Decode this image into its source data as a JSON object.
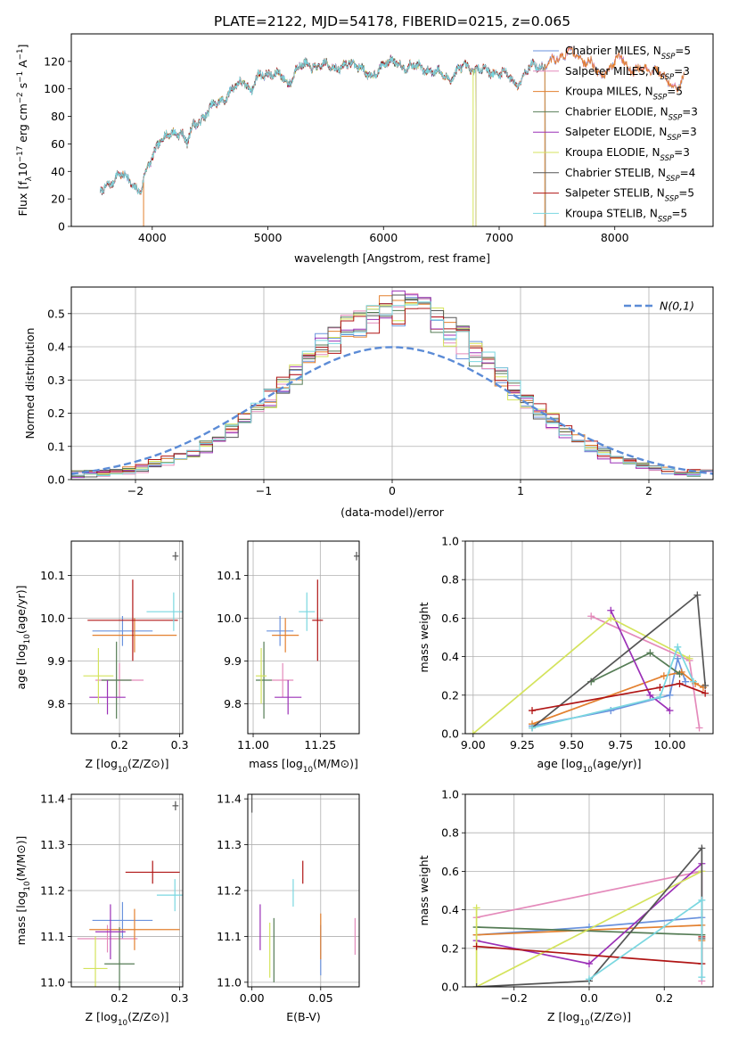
{
  "figure_title": "PLATE=2122, MJD=54178, FIBERID=0215, z=0.065",
  "models": [
    {
      "name": "Chabrier MILES",
      "nssp": "5",
      "color": "#6a92dd"
    },
    {
      "name": "Salpeter MILES",
      "nssp": "3",
      "color": "#e48abb"
    },
    {
      "name": "Kroupa MILES",
      "nssp": "5",
      "color": "#e3802f"
    },
    {
      "name": "Chabrier ELODIE",
      "nssp": "3",
      "color": "#557c55"
    },
    {
      "name": "Salpeter ELODIE",
      "nssp": "3",
      "color": "#9b30b7"
    },
    {
      "name": "Kroupa ELODIE",
      "nssp": "3",
      "color": "#d4e35c"
    },
    {
      "name": "Chabrier STELIB",
      "nssp": "4",
      "color": "#555555"
    },
    {
      "name": "Salpeter STELIB",
      "nssp": "5",
      "color": "#b01515"
    },
    {
      "name": "Kroupa STELIB",
      "nssp": "5",
      "color": "#7ad7e0"
    }
  ],
  "chart_data": [
    {
      "id": "spectrum",
      "type": "line",
      "xlabel": "wavelength [Angstrom, rest frame]",
      "ylabel": "Flux [f_λ 10^-17 erg cm^-2 s^-1 A^-1]",
      "xlim": [
        3300,
        8850
      ],
      "ylim": [
        0,
        140
      ],
      "xticks": [
        4000,
        5000,
        6000,
        7000,
        8000
      ],
      "yticks": [
        0,
        20,
        40,
        60,
        80,
        100,
        120
      ],
      "legend": "top-right",
      "continuum": [
        [
          3550,
          24
        ],
        [
          3700,
          38
        ],
        [
          3800,
          34
        ],
        [
          3900,
          25
        ],
        [
          3950,
          40
        ],
        [
          4000,
          50
        ],
        [
          4050,
          62
        ],
        [
          4150,
          66
        ],
        [
          4250,
          70
        ],
        [
          4300,
          60
        ],
        [
          4350,
          72
        ],
        [
          4500,
          85
        ],
        [
          4600,
          92
        ],
        [
          4700,
          100
        ],
        [
          4800,
          106
        ],
        [
          4861,
          99
        ],
        [
          4900,
          107
        ],
        [
          5000,
          112
        ],
        [
          5100,
          110
        ],
        [
          5175,
          103
        ],
        [
          5250,
          116
        ],
        [
          5400,
          117
        ],
        [
          5600,
          116
        ],
        [
          5800,
          118
        ],
        [
          5893,
          106
        ],
        [
          6000,
          120
        ],
        [
          6200,
          117
        ],
        [
          6400,
          114
        ],
        [
          6563,
          108
        ],
        [
          6700,
          116
        ],
        [
          6900,
          113
        ],
        [
          7050,
          111
        ],
        [
          7150,
          104
        ],
        [
          7300,
          118
        ],
        [
          7400,
          116
        ],
        [
          7600,
          128
        ],
        [
          7700,
          122
        ],
        [
          7800,
          120
        ],
        [
          7850,
          109
        ],
        [
          7900,
          112
        ],
        [
          8050,
          123
        ],
        [
          8150,
          114
        ],
        [
          8250,
          113
        ],
        [
          8350,
          115
        ],
        [
          8450,
          105
        ],
        [
          8550,
          102
        ],
        [
          8600,
          108
        ]
      ],
      "model_ranges": [
        [
          3550,
          8600
        ],
        [
          3550,
          8600
        ],
        [
          3550,
          8600
        ],
        [
          3900,
          6800
        ],
        [
          3900,
          6800
        ],
        [
          3900,
          6800
        ],
        [
          3550,
          7400
        ],
        [
          3550,
          7400
        ],
        [
          3550,
          7400
        ]
      ]
    },
    {
      "id": "residuals",
      "type": "histogram",
      "xlabel": "(data-model)/error",
      "ylabel": "Normed distribution",
      "xlim": [
        -2.5,
        2.5
      ],
      "ylim": [
        0,
        0.58
      ],
      "xticks": [
        -2,
        -1,
        0,
        1,
        2
      ],
      "yticks": [
        0.0,
        0.1,
        0.2,
        0.3,
        0.4,
        0.5
      ],
      "legend": "top-right",
      "reference_label": "N(0,1)",
      "reference_color": "#5b8bd6",
      "bin_width": 0.1
    },
    {
      "id": "age_vs_Z",
      "type": "errorbar",
      "xlabel": "Z [log10(Z/Z⊙)]",
      "ylabel": "age  [log10(age/yr)]",
      "xlim": [
        0.12,
        0.305
      ],
      "ylim": [
        9.73,
        10.18
      ],
      "xticks": [
        0.2,
        0.3
      ],
      "yticks": [
        9.8,
        9.9,
        10.0,
        10.1
      ],
      "points": [
        {
          "x": 0.205,
          "xerr": 0.05,
          "y": 9.97,
          "yerr": 0.035
        },
        {
          "x": 0.2,
          "xerr": 0.04,
          "y": 9.855,
          "yerr": 0.04
        },
        {
          "x": 0.225,
          "xerr": 0.07,
          "y": 9.96,
          "yerr": 0.04
        },
        {
          "x": 0.195,
          "xerr": 0.025,
          "y": 9.855,
          "yerr": 0.09
        },
        {
          "x": 0.18,
          "xerr": 0.03,
          "y": 9.815,
          "yerr": 0.04
        },
        {
          "x": 0.165,
          "xerr": 0.025,
          "y": 9.865,
          "yerr": 0.065
        },
        {
          "x": 0.293,
          "xerr": 0.005,
          "y": 10.145,
          "yerr": 0.01
        },
        {
          "x": 0.222,
          "xerr": 0.075,
          "y": 9.995,
          "yerr": 0.095
        },
        {
          "x": 0.29,
          "xerr": 0.045,
          "y": 10.015,
          "yerr": 0.045
        }
      ]
    },
    {
      "id": "age_vs_mass",
      "type": "errorbar",
      "xlabel": "mass [log10(M/M⊙)]",
      "ylabel": "",
      "xlim": [
        10.98,
        11.395
      ],
      "ylim": [
        9.73,
        10.18
      ],
      "xticks": [
        11.0,
        11.25
      ],
      "yticks": [
        9.8,
        9.9,
        10.0,
        10.1
      ],
      "points": [
        {
          "x": 11.1,
          "xerr": 0.05,
          "y": 9.97,
          "yerr": 0.035
        },
        {
          "x": 11.11,
          "xerr": 0.04,
          "y": 9.855,
          "yerr": 0.04
        },
        {
          "x": 11.12,
          "xerr": 0.05,
          "y": 9.96,
          "yerr": 0.04
        },
        {
          "x": 11.04,
          "xerr": 0.03,
          "y": 9.855,
          "yerr": 0.09
        },
        {
          "x": 11.13,
          "xerr": 0.05,
          "y": 9.815,
          "yerr": 0.04
        },
        {
          "x": 11.03,
          "xerr": 0.02,
          "y": 9.865,
          "yerr": 0.065
        },
        {
          "x": 11.385,
          "xerr": 0.01,
          "y": 10.145,
          "yerr": 0.01
        },
        {
          "x": 11.24,
          "xerr": 0.02,
          "y": 9.995,
          "yerr": 0.095
        },
        {
          "x": 11.2,
          "xerr": 0.03,
          "y": 10.015,
          "yerr": 0.045
        }
      ]
    },
    {
      "id": "mass_weight_vs_age",
      "type": "line",
      "xlabel": "age  [log10(age/yr)]",
      "ylabel": "mass weight",
      "xlim": [
        8.96,
        10.22
      ],
      "ylim": [
        0,
        1
      ],
      "xticks": [
        9.0,
        9.25,
        9.5,
        9.75,
        10.0
      ],
      "yticks": [
        0.0,
        0.2,
        0.4,
        0.6,
        0.8,
        1.0
      ],
      "series": [
        [
          [
            9.3,
            0.04
          ],
          [
            9.7,
            0.12
          ],
          [
            10.0,
            0.2
          ],
          [
            10.04,
            0.39
          ],
          [
            10.08,
            0.27
          ]
        ],
        [
          [
            9.6,
            0.61
          ],
          [
            10.1,
            0.38
          ],
          [
            10.15,
            0.03
          ]
        ],
        [
          [
            9.3,
            0.05
          ],
          [
            9.97,
            0.3
          ],
          [
            10.06,
            0.32
          ],
          [
            10.13,
            0.26
          ],
          [
            10.17,
            0.24
          ]
        ],
        [
          [
            9.6,
            0.27
          ],
          [
            9.9,
            0.42
          ],
          [
            10.05,
            0.31
          ]
        ],
        [
          [
            9.7,
            0.64
          ],
          [
            9.9,
            0.2
          ],
          [
            10.0,
            0.12
          ]
        ],
        [
          [
            9.0,
            0.0
          ],
          [
            9.7,
            0.6
          ],
          [
            10.1,
            0.39
          ]
        ],
        [
          [
            9.3,
            0.03
          ],
          [
            10.14,
            0.72
          ],
          [
            10.18,
            0.25
          ]
        ],
        [
          [
            9.3,
            0.12
          ],
          [
            9.95,
            0.24
          ],
          [
            10.05,
            0.26
          ],
          [
            10.18,
            0.21
          ]
        ],
        [
          [
            9.3,
            0.03
          ],
          [
            9.95,
            0.19
          ],
          [
            10.04,
            0.45
          ],
          [
            10.12,
            0.27
          ]
        ]
      ]
    },
    {
      "id": "mass_vs_Z",
      "type": "errorbar",
      "xlabel": "Z [log10(Z/Z⊙)]",
      "ylabel": "mass [log10(M/M⊙)]",
      "xlim": [
        0.12,
        0.305
      ],
      "ylim": [
        10.99,
        11.41
      ],
      "xticks": [
        0.2,
        0.3
      ],
      "yticks": [
        11.0,
        11.1,
        11.2,
        11.3,
        11.4
      ],
      "points": [
        {
          "x": 0.205,
          "xerr": 0.05,
          "y": 11.135,
          "yerr": 0.04
        },
        {
          "x": 0.18,
          "xerr": 0.05,
          "y": 11.095,
          "yerr": 0.03
        },
        {
          "x": 0.225,
          "xerr": 0.075,
          "y": 11.115,
          "yerr": 0.045
        },
        {
          "x": 0.2,
          "xerr": 0.025,
          "y": 11.04,
          "yerr": 0.08
        },
        {
          "x": 0.185,
          "xerr": 0.025,
          "y": 11.11,
          "yerr": 0.06
        },
        {
          "x": 0.16,
          "xerr": 0.02,
          "y": 11.03,
          "yerr": 0.07
        },
        {
          "x": 0.293,
          "xerr": 0.005,
          "y": 11.385,
          "yerr": 0.01
        },
        {
          "x": 0.255,
          "xerr": 0.045,
          "y": 11.24,
          "yerr": 0.025
        },
        {
          "x": 0.292,
          "xerr": 0.03,
          "y": 11.19,
          "yerr": 0.035
        }
      ]
    },
    {
      "id": "mass_vs_EBV",
      "type": "errorbar",
      "xlabel": "E(B-V)",
      "ylabel": "",
      "xlim": [
        -0.003,
        0.078
      ],
      "ylim": [
        10.99,
        11.41
      ],
      "xticks": [
        0.0,
        0.05
      ],
      "yticks": [
        11.0,
        11.1,
        11.2,
        11.3,
        11.4
      ],
      "points": [
        {
          "x": 0.05,
          "xerr": 0.0,
          "y": 11.07,
          "yerr": 0.055
        },
        {
          "x": 0.075,
          "xerr": 0.0,
          "y": 11.1,
          "yerr": 0.04
        },
        {
          "x": 0.05,
          "xerr": 0.0,
          "y": 11.1,
          "yerr": 0.05
        },
        {
          "x": 0.016,
          "xerr": 0.0,
          "y": 11.07,
          "yerr": 0.07
        },
        {
          "x": 0.006,
          "xerr": 0.0,
          "y": 11.12,
          "yerr": 0.05
        },
        {
          "x": 0.013,
          "xerr": 0.0,
          "y": 11.07,
          "yerr": 0.06
        },
        {
          "x": 0.0,
          "xerr": 0.0,
          "y": 11.39,
          "yerr": 0.02
        },
        {
          "x": 0.037,
          "xerr": 0.0,
          "y": 11.24,
          "yerr": 0.025
        },
        {
          "x": 0.03,
          "xerr": 0.0,
          "y": 11.195,
          "yerr": 0.03
        }
      ]
    },
    {
      "id": "mass_weight_vs_Z",
      "type": "line",
      "xlabel": "Z [log10(Z/Z⊙)]",
      "ylabel": "mass weight",
      "xlim": [
        -0.33,
        0.33
      ],
      "ylim": [
        0,
        1
      ],
      "xticks": [
        -0.2,
        0.0,
        0.2
      ],
      "yticks": [
        0.0,
        0.2,
        0.4,
        0.6,
        0.8,
        1.0
      ],
      "series": [
        [
          [
            -0.3,
            0.27
          ],
          [
            0.0,
            0.31
          ],
          [
            0.3,
            0.36
          ]
        ],
        [
          [
            -0.3,
            0.36
          ],
          [
            0.3,
            0.6
          ],
          [
            0.3,
            0.03
          ]
        ],
        [
          [
            -0.3,
            0.27
          ],
          [
            0.3,
            0.32
          ],
          [
            0.3,
            0.24
          ]
        ],
        [
          [
            -0.3,
            0.31
          ],
          [
            0.3,
            0.27
          ]
        ],
        [
          [
            -0.3,
            0.24
          ],
          [
            0.0,
            0.12
          ],
          [
            0.3,
            0.64
          ]
        ],
        [
          [
            -0.3,
            0.41
          ],
          [
            -0.3,
            0.0
          ],
          [
            0.3,
            0.6
          ]
        ],
        [
          [
            -0.3,
            0.0
          ],
          [
            0.0,
            0.03
          ],
          [
            0.3,
            0.72
          ],
          [
            0.3,
            0.25
          ]
        ],
        [
          [
            -0.3,
            0.21
          ],
          [
            0.3,
            0.12
          ],
          [
            0.3,
            0.26
          ]
        ],
        [
          [
            0.0,
            0.04
          ],
          [
            0.3,
            0.45
          ],
          [
            0.3,
            0.05
          ]
        ]
      ]
    }
  ]
}
